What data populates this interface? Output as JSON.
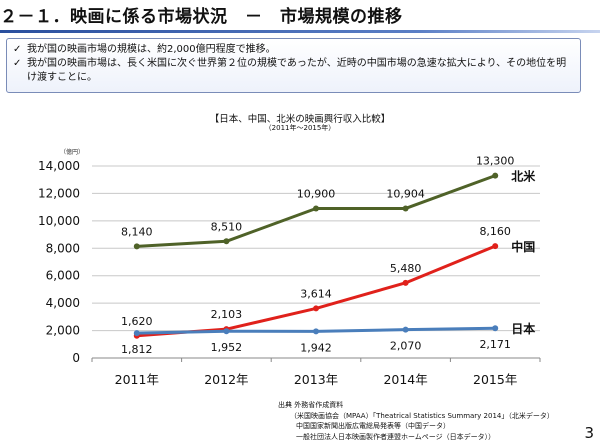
{
  "header": {
    "title": "２－１．映画に係る市場状況　－　市場規模の推移"
  },
  "summary": {
    "check_glyph": "✓",
    "bullets": [
      "我が国の映画市場の規模は、約2,000億円程度で推移。",
      "我が国の映画市場は、長く米国に次ぐ世界第２位の規模であったが、近時の中国市場の急速な拡大により、その地位を明け渡すことに。"
    ]
  },
  "chart_data": {
    "type": "line",
    "title": "【日本、中国、北米の映画興行収入比較】",
    "subtitle": "（2011年～2015年）",
    "ylabel": "（億円）",
    "xlabel": "",
    "categories": [
      "2011年",
      "2012年",
      "2013年",
      "2014年",
      "2015年"
    ],
    "ylim": [
      0,
      14000
    ],
    "yticks": [
      0,
      2000,
      4000,
      6000,
      8000,
      10000,
      12000,
      14000
    ],
    "ytick_labels": [
      "0",
      "2,000",
      "4,000",
      "6,000",
      "8,000",
      "10,000",
      "12,000",
      "14,000"
    ],
    "grid": true,
    "series": [
      {
        "name": "北米",
        "color": "#4f6228",
        "values": [
          8140,
          8510,
          10900,
          10904,
          13300
        ],
        "labels": [
          "8,140",
          "8,510",
          "10,900",
          "10,904",
          "13,300"
        ]
      },
      {
        "name": "中国",
        "color": "#e0211b",
        "values": [
          1620,
          2103,
          3614,
          5480,
          8160
        ],
        "labels": [
          "1,620",
          "2,103",
          "3,614",
          "5,480",
          "8,160"
        ]
      },
      {
        "name": "日本",
        "color": "#4a7ebb",
        "values": [
          1812,
          1952,
          1942,
          2070,
          2171
        ],
        "labels": [
          "1,812",
          "1,952",
          "1,942",
          "2,070",
          "2,171"
        ]
      }
    ]
  },
  "source": {
    "lines": [
      "出典 外務省作成資料",
      "（米国映画協会（MPAA）「Theatrical Statistics Summary 2014」（北米データ）",
      "中国国家新聞出版広電総局発表等（中国データ）",
      "一般社団法人日本映画製作者連盟ホームページ（日本データ））"
    ]
  },
  "page": {
    "number": "3"
  }
}
